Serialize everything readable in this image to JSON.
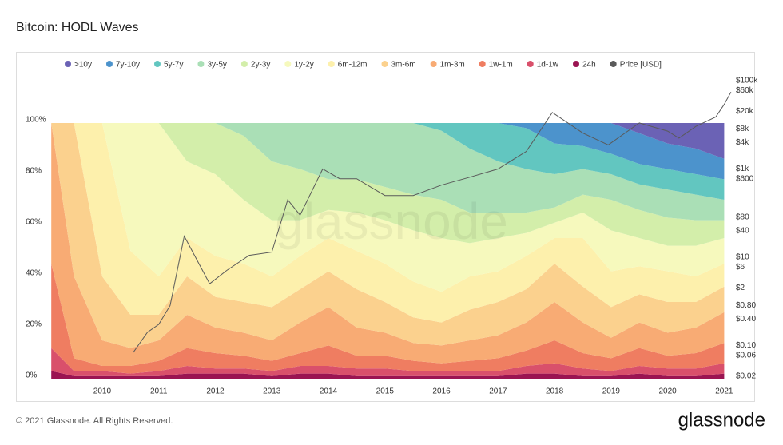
{
  "title": "Bitcoin: HODL Waves",
  "copyright": "© 2021 Glassnode. All Rights Reserved.",
  "brand": "glassnode",
  "chart_data": {
    "type": "stacked-area",
    "x": [
      2009.1,
      2009.5,
      2010.0,
      2010.5,
      2011.0,
      2011.5,
      2012.0,
      2012.5,
      2013.0,
      2013.5,
      2014.0,
      2014.5,
      2015.0,
      2015.5,
      2016.0,
      2016.5,
      2017.0,
      2017.5,
      2018.0,
      2018.5,
      2019.0,
      2019.5,
      2020.0,
      2020.5,
      2021.0
    ],
    "xlim": [
      2009.04,
      2021.15
    ],
    "xticks": [
      2010,
      2011,
      2012,
      2013,
      2014,
      2015,
      2016,
      2017,
      2018,
      2019,
      2020,
      2021
    ],
    "ylim": [
      0,
      100
    ],
    "yticks": [
      {
        "value": 0,
        "label": "0%"
      },
      {
        "value": 20,
        "label": "20%"
      },
      {
        "value": 40,
        "label": "40%"
      },
      {
        "value": 60,
        "label": "60%"
      },
      {
        "value": 80,
        "label": "80%"
      },
      {
        "value": 100,
        "label": "100%"
      }
    ],
    "y2lim": [
      0.02,
      100000
    ],
    "y2log": true,
    "y2ticks": [
      {
        "value": 0.02,
        "label": "$0.02"
      },
      {
        "value": 0.06,
        "label": "$0.06"
      },
      {
        "value": 0.1,
        "label": "$0.10"
      },
      {
        "value": 0.4,
        "label": "$0.40"
      },
      {
        "value": 0.8,
        "label": "$0.80"
      },
      {
        "value": 2,
        "label": "$2"
      },
      {
        "value": 6,
        "label": "$6"
      },
      {
        "value": 10,
        "label": "$10"
      },
      {
        "value": 40,
        "label": "$40"
      },
      {
        "value": 80,
        "label": "$80"
      },
      {
        "value": 600,
        "label": "$600"
      },
      {
        "value": 1000,
        "label": "$1k"
      },
      {
        "value": 4000,
        "label": "$4k"
      },
      {
        "value": 8000,
        "label": "$8k"
      },
      {
        "value": 20000,
        "label": "$20k"
      },
      {
        "value": 60000,
        "label": "$60k"
      },
      {
        "value": 100000,
        "label": "$100k"
      }
    ],
    "grid": false,
    "series": [
      {
        "name": ">10y",
        "color": "#6b62b5",
        "values": [
          0,
          0,
          0,
          0,
          0,
          0,
          0,
          0,
          0,
          0,
          0,
          0,
          0,
          0,
          0,
          0,
          0,
          0,
          0,
          0,
          0,
          4,
          8,
          10,
          14
        ]
      },
      {
        "name": "7y-10y",
        "color": "#4c93cc",
        "values": [
          0,
          0,
          0,
          0,
          0,
          0,
          0,
          0,
          0,
          0,
          0,
          0,
          0,
          0,
          0,
          0,
          0,
          2,
          8,
          9,
          12,
          12,
          10,
          10,
          8
        ]
      },
      {
        "name": "5y-7y",
        "color": "#62c6c0",
        "values": [
          0,
          0,
          0,
          0,
          0,
          0,
          0,
          0,
          0,
          0,
          0,
          0,
          0,
          0,
          3,
          10,
          15,
          16,
          12,
          9,
          8,
          8,
          8,
          8,
          8
        ]
      },
      {
        "name": "3y-5y",
        "color": "#aadfb6",
        "values": [
          0,
          0,
          0,
          0,
          0,
          0,
          0,
          5,
          15,
          18,
          22,
          22,
          25,
          28,
          27,
          25,
          20,
          17,
          13,
          10,
          10,
          10,
          11,
          10,
          8
        ]
      },
      {
        "name": "2y-3y",
        "color": "#d3eeaa",
        "values": [
          0,
          0,
          0,
          0,
          0,
          15,
          20,
          25,
          23,
          20,
          12,
          13,
          13,
          14,
          15,
          12,
          10,
          8,
          6,
          7,
          12,
          11,
          11,
          10,
          7
        ]
      },
      {
        "name": "1y-2y",
        "color": "#f6f9bd",
        "values": [
          0,
          0,
          0,
          50,
          60,
          30,
          32,
          25,
          22,
          14,
          11,
          15,
          17,
          20,
          21,
          13,
          13,
          9,
          6,
          10,
          16,
          11,
          10,
          12,
          10
        ]
      },
      {
        "name": "6m-12m",
        "color": "#fdf0ac",
        "values": [
          0,
          0,
          60,
          25,
          15,
          15,
          16,
          15,
          12,
          13,
          13,
          15,
          15,
          14,
          12,
          13,
          12,
          13,
          10,
          19,
          14,
          11,
          12,
          10,
          9
        ]
      },
      {
        "name": "3m-6m",
        "color": "#fbd18e",
        "values": [
          0,
          60,
          25,
          13,
          10,
          15,
          12,
          12,
          13,
          13,
          14,
          15,
          12,
          10,
          9,
          12,
          13,
          13,
          15,
          14,
          12,
          11,
          12,
          10,
          10
        ]
      },
      {
        "name": "1m-3m",
        "color": "#f8ab74",
        "values": [
          55,
          32,
          10,
          7,
          8,
          13,
          10,
          9,
          8,
          12,
          15,
          11,
          9,
          7,
          7,
          8,
          9,
          11,
          15,
          12,
          8,
          10,
          9,
          10,
          12
        ]
      },
      {
        "name": "1w-1m",
        "color": "#ef7d61",
        "values": [
          33,
          5,
          2,
          3,
          4,
          7,
          6,
          5,
          4,
          5,
          8,
          5,
          5,
          4,
          3,
          4,
          5,
          6,
          9,
          6,
          5,
          7,
          5,
          6,
          8
        ]
      },
      {
        "name": "1d-1w",
        "color": "#d9506b",
        "values": [
          9,
          2,
          2,
          1,
          2,
          3,
          2,
          2,
          2,
          3,
          3,
          3,
          3,
          2,
          2,
          2,
          2,
          3,
          4,
          3,
          2,
          3,
          3,
          3,
          4
        ]
      },
      {
        "name": "24h",
        "color": "#9b1452",
        "values": [
          3,
          1,
          1,
          1,
          1,
          2,
          2,
          2,
          1,
          2,
          2,
          1,
          1,
          1,
          1,
          1,
          1,
          2,
          2,
          1,
          1,
          2,
          1,
          1,
          2
        ]
      },
      {
        "name": "Price [USD]",
        "color": "#5a5a5a",
        "axis": "y2",
        "x": [
          2010.55,
          2010.8,
          2011.0,
          2011.2,
          2011.45,
          2011.9,
          2012.2,
          2012.6,
          2013.0,
          2013.28,
          2013.5,
          2013.9,
          2014.2,
          2014.5,
          2015.0,
          2015.5,
          2016.0,
          2016.5,
          2017.0,
          2017.5,
          2017.96,
          2018.5,
          2018.95,
          2019.5,
          2020.0,
          2020.2,
          2020.5,
          2020.85,
          2021.0,
          2021.12
        ],
        "values": [
          0.07,
          0.2,
          0.3,
          0.8,
          30,
          2.5,
          5,
          11,
          13,
          200,
          90,
          1000,
          600,
          600,
          250,
          250,
          430,
          650,
          1000,
          2500,
          19000,
          6500,
          3500,
          11000,
          7200,
          5000,
          9200,
          15000,
          29000,
          55000
        ]
      }
    ]
  }
}
